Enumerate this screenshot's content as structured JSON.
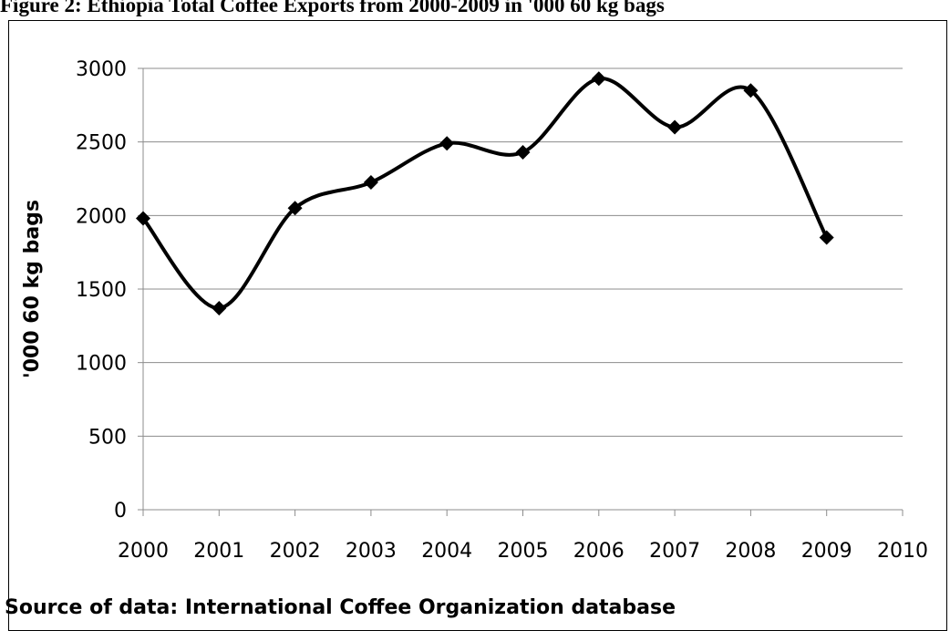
{
  "figure_caption": "Figure 2: Ethiopia Total Coffee Exports from 2000-2009  in '000 60 kg bags",
  "source_note": "Source of data:  International Coffee Organization database",
  "chart_data": {
    "type": "line",
    "title": "",
    "xlabel": "",
    "ylabel": "'000 60 kg bags",
    "xlim": [
      2000,
      2010
    ],
    "ylim": [
      0,
      3000
    ],
    "x_ticks": [
      "2000",
      "2001",
      "2002",
      "2003",
      "2004",
      "2005",
      "2006",
      "2007",
      "2008",
      "2009",
      "2010"
    ],
    "y_ticks": [
      "0",
      "500",
      "1000",
      "1500",
      "2000",
      "2500",
      "3000"
    ],
    "grid": "horizontal",
    "legend": "none",
    "smooth": true,
    "marker": "diamond",
    "line_color": "#000000",
    "series": [
      {
        "x": [
          2000,
          2001,
          2002,
          2003,
          2004,
          2005,
          2006,
          2007,
          2008,
          2009
        ],
        "values": [
          1980,
          1370,
          2050,
          2225,
          2490,
          2430,
          2930,
          2600,
          2850,
          1850
        ]
      }
    ]
  }
}
